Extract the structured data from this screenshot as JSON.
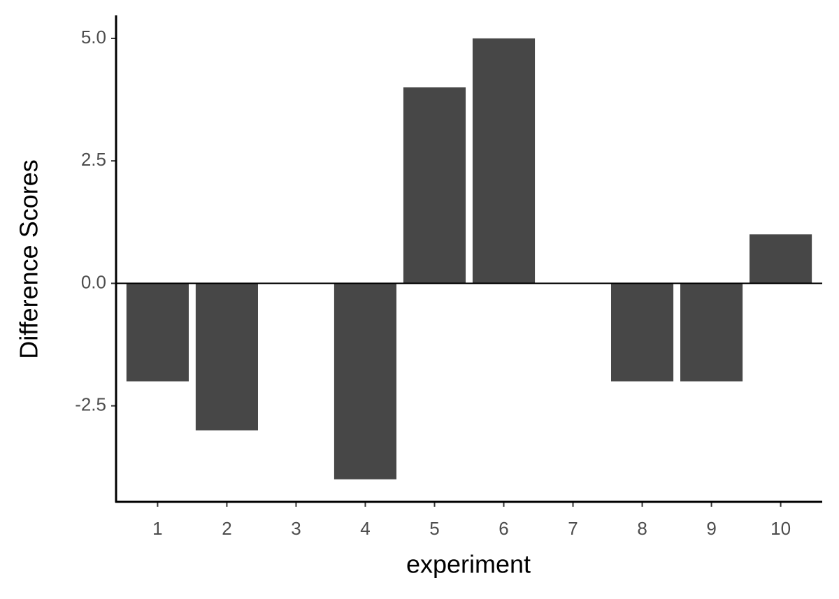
{
  "chart_data": {
    "type": "bar",
    "x_label": "experiment",
    "y_label": "Difference Scores",
    "categories": [
      "1",
      "2",
      "3",
      "4",
      "5",
      "6",
      "7",
      "8",
      "9",
      "10"
    ],
    "values": [
      -2,
      -3,
      0,
      -4,
      4,
      5,
      0,
      -2,
      -2,
      1
    ],
    "color": "#474747",
    "ylim": [
      -4.46,
      5.47
    ],
    "yticks": [
      -2.5,
      {
        "value": 0,
        "label": "0.0"
      },
      2.5,
      {
        "value": 5,
        "label": "5.0"
      }
    ],
    "hline": 0,
    "grid": false
  }
}
